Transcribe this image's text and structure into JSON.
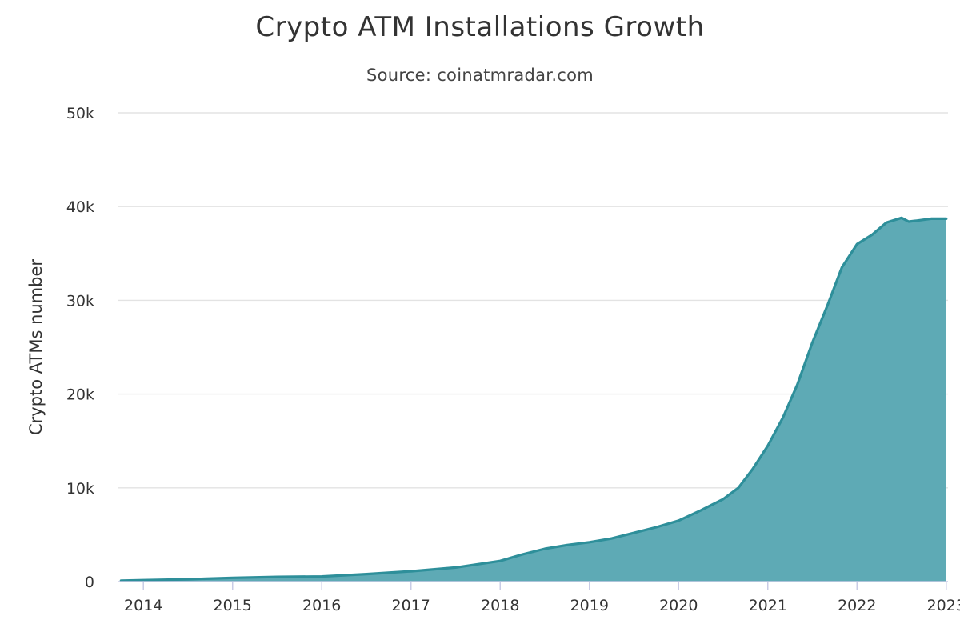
{
  "chart_data": {
    "type": "area",
    "title": "Crypto ATM Installations Growth",
    "subtitle": "Source: coinatmradar.com",
    "xlabel": "",
    "ylabel": "Crypto ATMs number",
    "xlim": [
      2013.72,
      2023.02
    ],
    "ylim": [
      0,
      50000
    ],
    "x_ticks": [
      2014,
      2015,
      2016,
      2017,
      2018,
      2019,
      2020,
      2021,
      2022,
      2023
    ],
    "x_tick_labels": [
      "2014",
      "2015",
      "2016",
      "2017",
      "2018",
      "2019",
      "2020",
      "2021",
      "2022",
      "2023"
    ],
    "y_ticks": [
      0,
      10000,
      20000,
      30000,
      40000,
      50000
    ],
    "y_tick_labels": [
      "0",
      "10k",
      "20k",
      "30k",
      "40k",
      "50k"
    ],
    "grid": "horizontal",
    "legend": "none",
    "series": [
      {
        "color": "#2e8f9a",
        "fill": "#5eaab5",
        "x": [
          2013.75,
          2014.0,
          2014.5,
          2015.0,
          2015.5,
          2016.0,
          2016.5,
          2017.0,
          2017.5,
          2018.0,
          2018.25,
          2018.5,
          2018.75,
          2019.0,
          2019.25,
          2019.5,
          2019.75,
          2020.0,
          2020.25,
          2020.5,
          2020.67,
          2020.83,
          2021.0,
          2021.17,
          2021.33,
          2021.5,
          2021.67,
          2021.83,
          2022.0,
          2022.17,
          2022.33,
          2022.5,
          2022.58,
          2022.67,
          2022.83,
          2023.0
        ],
        "values": [
          100,
          150,
          250,
          400,
          500,
          550,
          800,
          1100,
          1500,
          2200,
          2900,
          3500,
          3900,
          4200,
          4600,
          5200,
          5800,
          6500,
          7600,
          8800,
          10000,
          12000,
          14500,
          17500,
          21000,
          25500,
          29500,
          33500,
          36000,
          37000,
          38300,
          38800,
          38400,
          38500,
          38700,
          38700
        ]
      }
    ]
  }
}
